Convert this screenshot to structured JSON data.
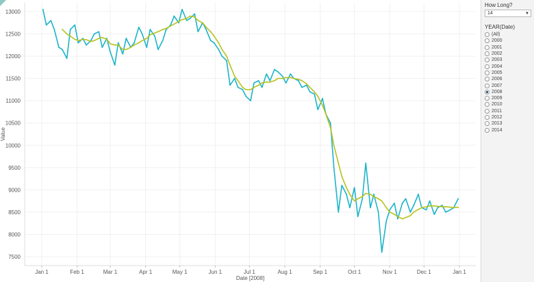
{
  "chart_data": {
    "type": "line",
    "xlabel": "Date [2008]",
    "ylabel": "Value",
    "x_ticks": [
      "Jan 1",
      "Feb 1",
      "Mar 1",
      "Apr 1",
      "May 1",
      "Jun 1",
      "Jul 1",
      "Aug 1",
      "Sep 1",
      "Oct 1",
      "Nov 1",
      "Dec 1",
      "Jan 1"
    ],
    "ylim": [
      7300,
      13200
    ],
    "y_ticks": [
      7500,
      8000,
      8500,
      9000,
      9500,
      10000,
      10500,
      11000,
      11500,
      12000,
      12500,
      13000
    ],
    "grid": true,
    "series": [
      {
        "color": "#1bb3c9",
        "x": [
          2,
          5,
          9,
          12,
          16,
          19,
          23,
          26,
          30,
          33,
          37,
          40,
          44,
          47,
          51,
          54,
          58,
          61,
          65,
          68,
          72,
          75,
          79,
          82,
          86,
          89,
          93,
          96,
          100,
          103,
          107,
          110,
          114,
          117,
          121,
          124,
          128,
          131,
          135,
          138,
          142,
          145,
          149,
          152,
          156,
          159,
          163,
          166,
          170,
          173,
          177,
          180,
          184,
          187,
          191,
          194,
          198,
          201,
          205,
          208,
          212,
          215,
          219,
          222,
          226,
          229,
          233,
          236,
          240,
          243,
          247,
          250,
          254,
          257,
          261,
          264,
          268,
          271,
          275,
          278,
          282,
          285,
          289,
          292,
          296,
          299,
          303,
          306,
          310,
          313,
          317,
          320,
          324,
          327,
          331,
          334,
          338,
          341,
          345,
          348,
          352,
          355,
          359,
          362,
          366
        ],
        "values": [
          13050,
          12700,
          12800,
          12600,
          12200,
          12150,
          11950,
          12600,
          12700,
          12300,
          12400,
          12250,
          12350,
          12500,
          12550,
          12200,
          12400,
          12100,
          11800,
          12300,
          12050,
          12400,
          12200,
          12300,
          12650,
          12500,
          12200,
          12600,
          12450,
          12150,
          12350,
          12600,
          12700,
          12900,
          12750,
          13050,
          12800,
          12850,
          12950,
          12550,
          12750,
          12600,
          12350,
          12300,
          12150,
          12000,
          11900,
          11350,
          11500,
          11300,
          11250,
          11100,
          11000,
          11400,
          11450,
          11300,
          11600,
          11450,
          11700,
          11650,
          11550,
          11400,
          11600,
          11500,
          11450,
          11300,
          11350,
          11200,
          11150,
          10800,
          11050,
          10700,
          10500,
          9500,
          8500,
          9100,
          8900,
          8600,
          9050,
          8400,
          8800,
          9600,
          8600,
          8900,
          8500,
          7600,
          8300,
          8550,
          8700,
          8350,
          8700,
          8800,
          8500,
          8650,
          8900,
          8600,
          8550,
          8750,
          8450,
          8600,
          8650,
          8500,
          8550,
          8600,
          8800
        ],
        "values_note": "",
        "name": ""
      },
      {
        "color": "#b8c11e",
        "x": [
          19,
          23,
          26,
          30,
          33,
          37,
          40,
          44,
          47,
          51,
          54,
          58,
          61,
          65,
          68,
          72,
          75,
          79,
          82,
          86,
          89,
          93,
          96,
          100,
          103,
          107,
          110,
          114,
          117,
          121,
          124,
          128,
          131,
          135,
          138,
          142,
          145,
          149,
          152,
          156,
          159,
          163,
          166,
          170,
          173,
          177,
          180,
          184,
          187,
          191,
          194,
          198,
          201,
          205,
          208,
          212,
          215,
          219,
          222,
          226,
          229,
          233,
          236,
          240,
          243,
          247,
          250,
          254,
          257,
          261,
          264,
          268,
          271,
          275,
          278,
          282,
          285,
          289,
          292,
          296,
          299,
          303,
          306,
          310,
          313,
          317,
          320,
          324,
          327,
          331,
          334,
          338,
          341,
          345,
          348,
          352,
          355,
          359,
          362,
          366
        ],
        "values": [
          12600,
          12500,
          12450,
          12380,
          12350,
          12380,
          12370,
          12330,
          12350,
          12400,
          12420,
          12380,
          12280,
          12250,
          12250,
          12150,
          12150,
          12200,
          12250,
          12300,
          12350,
          12400,
          12480,
          12520,
          12550,
          12600,
          12620,
          12680,
          12720,
          12780,
          12820,
          12850,
          12900,
          12880,
          12800,
          12750,
          12650,
          12550,
          12450,
          12300,
          12150,
          12000,
          11800,
          11550,
          11450,
          11300,
          11250,
          11250,
          11300,
          11350,
          11400,
          11420,
          11420,
          11450,
          11500,
          11500,
          11520,
          11520,
          11500,
          11480,
          11450,
          11380,
          11300,
          11200,
          11100,
          10900,
          10700,
          10400,
          10000,
          9600,
          9300,
          9050,
          8900,
          8750,
          8800,
          8850,
          8920,
          8900,
          8850,
          8800,
          8750,
          8600,
          8500,
          8450,
          8400,
          8350,
          8380,
          8420,
          8500,
          8560,
          8600,
          8620,
          8640,
          8640,
          8630,
          8620,
          8620,
          8610,
          8600,
          8610
        ],
        "name": ""
      }
    ]
  },
  "side_panel": {
    "how_long_title": "How Long?",
    "how_long_value": "14",
    "year_title": "YEAR(Date)",
    "year_options": [
      "(All)",
      "2000",
      "2001",
      "2002",
      "2003",
      "2004",
      "2005",
      "2006",
      "2007",
      "2008",
      "2009",
      "2010",
      "2011",
      "2012",
      "2013",
      "2014"
    ],
    "selected_year": "2008"
  }
}
